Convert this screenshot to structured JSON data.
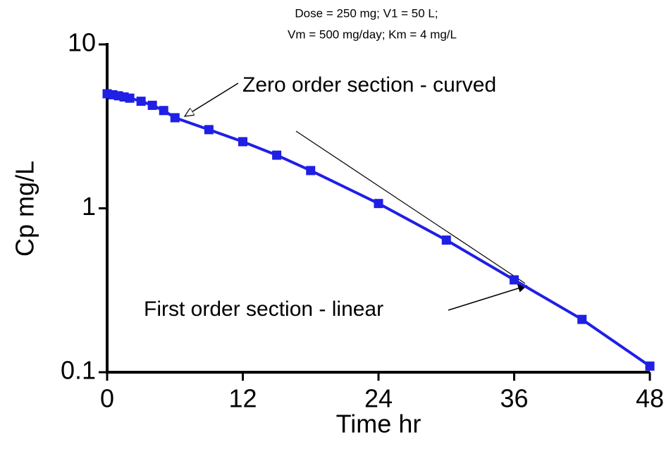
{
  "chart_data": {
    "type": "line",
    "subtitle_lines": [
      "Dose = 250 mg; V1 = 50 L;",
      "Vm = 500 mg/day; Km = 4 mg/L"
    ],
    "x_label": "Time hr",
    "y_label": "Cp mg/L",
    "annotations": [
      "Zero order section - curved",
      "First order section - linear"
    ],
    "x": [
      0,
      0.5,
      1,
      1.5,
      2,
      3,
      4,
      5,
      6,
      9,
      12,
      15,
      18,
      24,
      30,
      36,
      42,
      48
    ],
    "series": [
      {
        "name": "Cp",
        "color": "#1f1fe6",
        "values": [
          5,
          4.93,
          4.86,
          4.78,
          4.7,
          4.5,
          4.25,
          3.95,
          3.57,
          3.02,
          2.55,
          2.11,
          1.7,
          1.07,
          0.64,
          0.366,
          0.21,
          0.109
        ]
      }
    ],
    "xlim": [
      0,
      48
    ],
    "xticks": [
      0,
      12,
      24,
      36,
      48
    ],
    "ylim": [
      0.1,
      10
    ],
    "yticks": [
      0.1,
      1,
      10
    ],
    "ylog": true
  }
}
